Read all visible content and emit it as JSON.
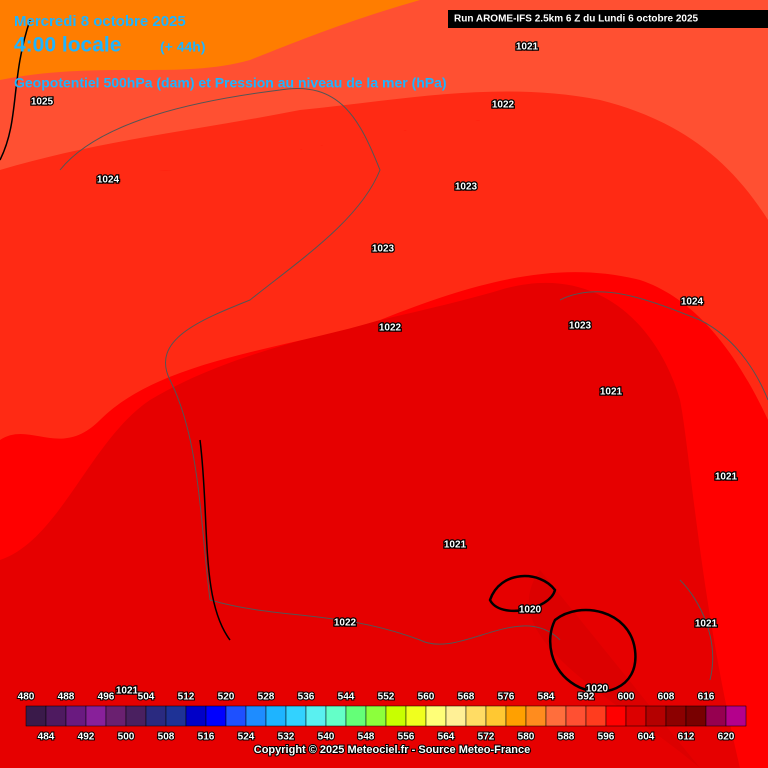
{
  "header": {
    "title": "Mercredi 8 octobre 2025",
    "time": "4:00 locale",
    "lead": "(+ 44h)",
    "subtitle": "Geopotentiel 500hPa (dam) et Pression au niveau de la mer (hPa)",
    "run": "Run AROME-IFS 2.5km 6 Z du Lundi 6 octobre 2025"
  },
  "isobar_labels": [
    1021,
    1025,
    1022,
    1024,
    1023,
    1023,
    1024,
    1022,
    1023,
    1021,
    1021,
    1021,
    1020,
    1022,
    1021,
    1020,
    1021
  ],
  "colorbar": {
    "levels": [
      480,
      484,
      488,
      492,
      496,
      500,
      504,
      508,
      512,
      516,
      520,
      524,
      528,
      532,
      536,
      540,
      544,
      548,
      552,
      556,
      560,
      564,
      568,
      572,
      576,
      580,
      584,
      588,
      592,
      596,
      600,
      604,
      608,
      612,
      616,
      620
    ],
    "colors": [
      "#3a1a4a",
      "#4e1a60",
      "#6a1a80",
      "#88209a",
      "#6a2070",
      "#4a2060",
      "#2a2a80",
      "#1e3296",
      "#0000c8",
      "#0000ff",
      "#1e50ff",
      "#1e8cff",
      "#1eb4ff",
      "#32d2ff",
      "#5af0f0",
      "#64ffc8",
      "#64ff78",
      "#8cff3c",
      "#c8ff00",
      "#f0ff1e",
      "#ffff78",
      "#fff096",
      "#ffdc64",
      "#ffc832",
      "#ffa000",
      "#ff8c1e",
      "#ff6e3c",
      "#ff5032",
      "#ff3c1e",
      "#ff0000",
      "#dc0000",
      "#b40000",
      "#8c0000",
      "#780000",
      "#960050",
      "#b4008c"
    ]
  },
  "footer": {
    "copyright": "Copyright © 2025 Meteociel.fr - Source Meteo-France"
  }
}
